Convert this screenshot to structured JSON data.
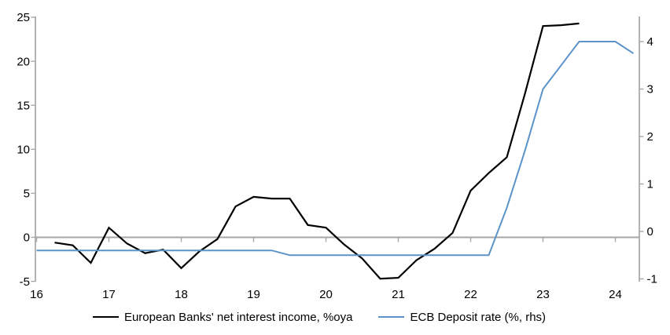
{
  "chart_data": {
    "type": "line",
    "title": "",
    "legend_position": "bottom",
    "grid": "zero-line-only",
    "x_axis": {
      "tick_values": [
        16,
        17,
        18,
        19,
        20,
        21,
        22,
        23,
        24
      ],
      "tick_labels": [
        "16",
        "17",
        "18",
        "19",
        "20",
        "21",
        "22",
        "23",
        "24"
      ],
      "range": [
        16,
        24.34
      ],
      "unit": "year (2016-2024)",
      "tick_style": "hanging-from-zero-line"
    },
    "left_y_axis": {
      "tick_values": [
        25,
        20,
        15,
        10,
        5,
        0,
        -5
      ],
      "tick_labels": [
        "25",
        "20",
        "15",
        "10",
        "5",
        "0",
        "-5"
      ],
      "range": [
        -5,
        25
      ],
      "zero_line": true
    },
    "right_y_axis": {
      "tick_values": [
        4,
        3,
        2,
        1,
        0,
        -1
      ],
      "tick_labels": [
        "4",
        "3",
        "2",
        "1",
        "0",
        "-1"
      ],
      "range": [
        -1.1,
        4.55
      ]
    },
    "series": [
      {
        "name": "European Banks' net interest income, %oya",
        "axis": "left",
        "color": "#000000",
        "stroke_width": 2.2,
        "x": [
          16.25,
          16.5,
          16.75,
          17.0,
          17.25,
          17.5,
          17.75,
          18.0,
          18.25,
          18.5,
          18.75,
          19.0,
          19.25,
          19.5,
          19.75,
          20.0,
          20.25,
          20.5,
          20.75,
          21.0,
          21.25,
          21.5,
          21.75,
          22.0,
          22.25,
          22.5,
          22.75,
          23.0,
          23.25,
          23.5
        ],
        "values": [
          -0.6,
          -0.9,
          -2.9,
          1.1,
          -0.7,
          -1.8,
          -1.4,
          -3.5,
          -1.6,
          -0.2,
          3.5,
          4.6,
          4.4,
          4.4,
          1.4,
          1.1,
          -0.8,
          -2.4,
          -4.7,
          -4.6,
          -2.6,
          -1.3,
          0.5,
          5.3,
          7.3,
          9.1,
          16.3,
          24.0,
          24.1,
          24.3
        ]
      },
      {
        "name": "ECB Deposit rate (%, rhs)",
        "axis": "right",
        "color": "#5B93C9",
        "stroke_width": 2.0,
        "x": [
          16.0,
          16.25,
          16.5,
          16.75,
          17.0,
          17.25,
          17.5,
          17.75,
          18.0,
          18.25,
          18.5,
          18.75,
          19.0,
          19.25,
          19.5,
          19.75,
          20.0,
          20.25,
          20.5,
          20.75,
          21.0,
          21.25,
          21.5,
          21.75,
          22.0,
          22.25,
          22.5,
          22.75,
          23.0,
          23.25,
          23.5,
          23.75,
          24.0,
          24.25
        ],
        "values": [
          -0.4,
          -0.4,
          -0.4,
          -0.4,
          -0.4,
          -0.4,
          -0.4,
          -0.4,
          -0.4,
          -0.4,
          -0.4,
          -0.4,
          -0.4,
          -0.4,
          -0.5,
          -0.5,
          -0.5,
          -0.5,
          -0.5,
          -0.5,
          -0.5,
          -0.5,
          -0.5,
          -0.5,
          -0.5,
          -0.5,
          0.5,
          1.7,
          3.0,
          3.5,
          4.0,
          4.0,
          4.0,
          3.75
        ]
      }
    ]
  },
  "colors": {
    "background": "#FFFFFF",
    "axis_line": "#A6A6A6",
    "zero_line": "#A6A6A6",
    "tick_text": "#000000",
    "series_nii": "#000000",
    "series_deposit_rate": "#5B93C9"
  }
}
